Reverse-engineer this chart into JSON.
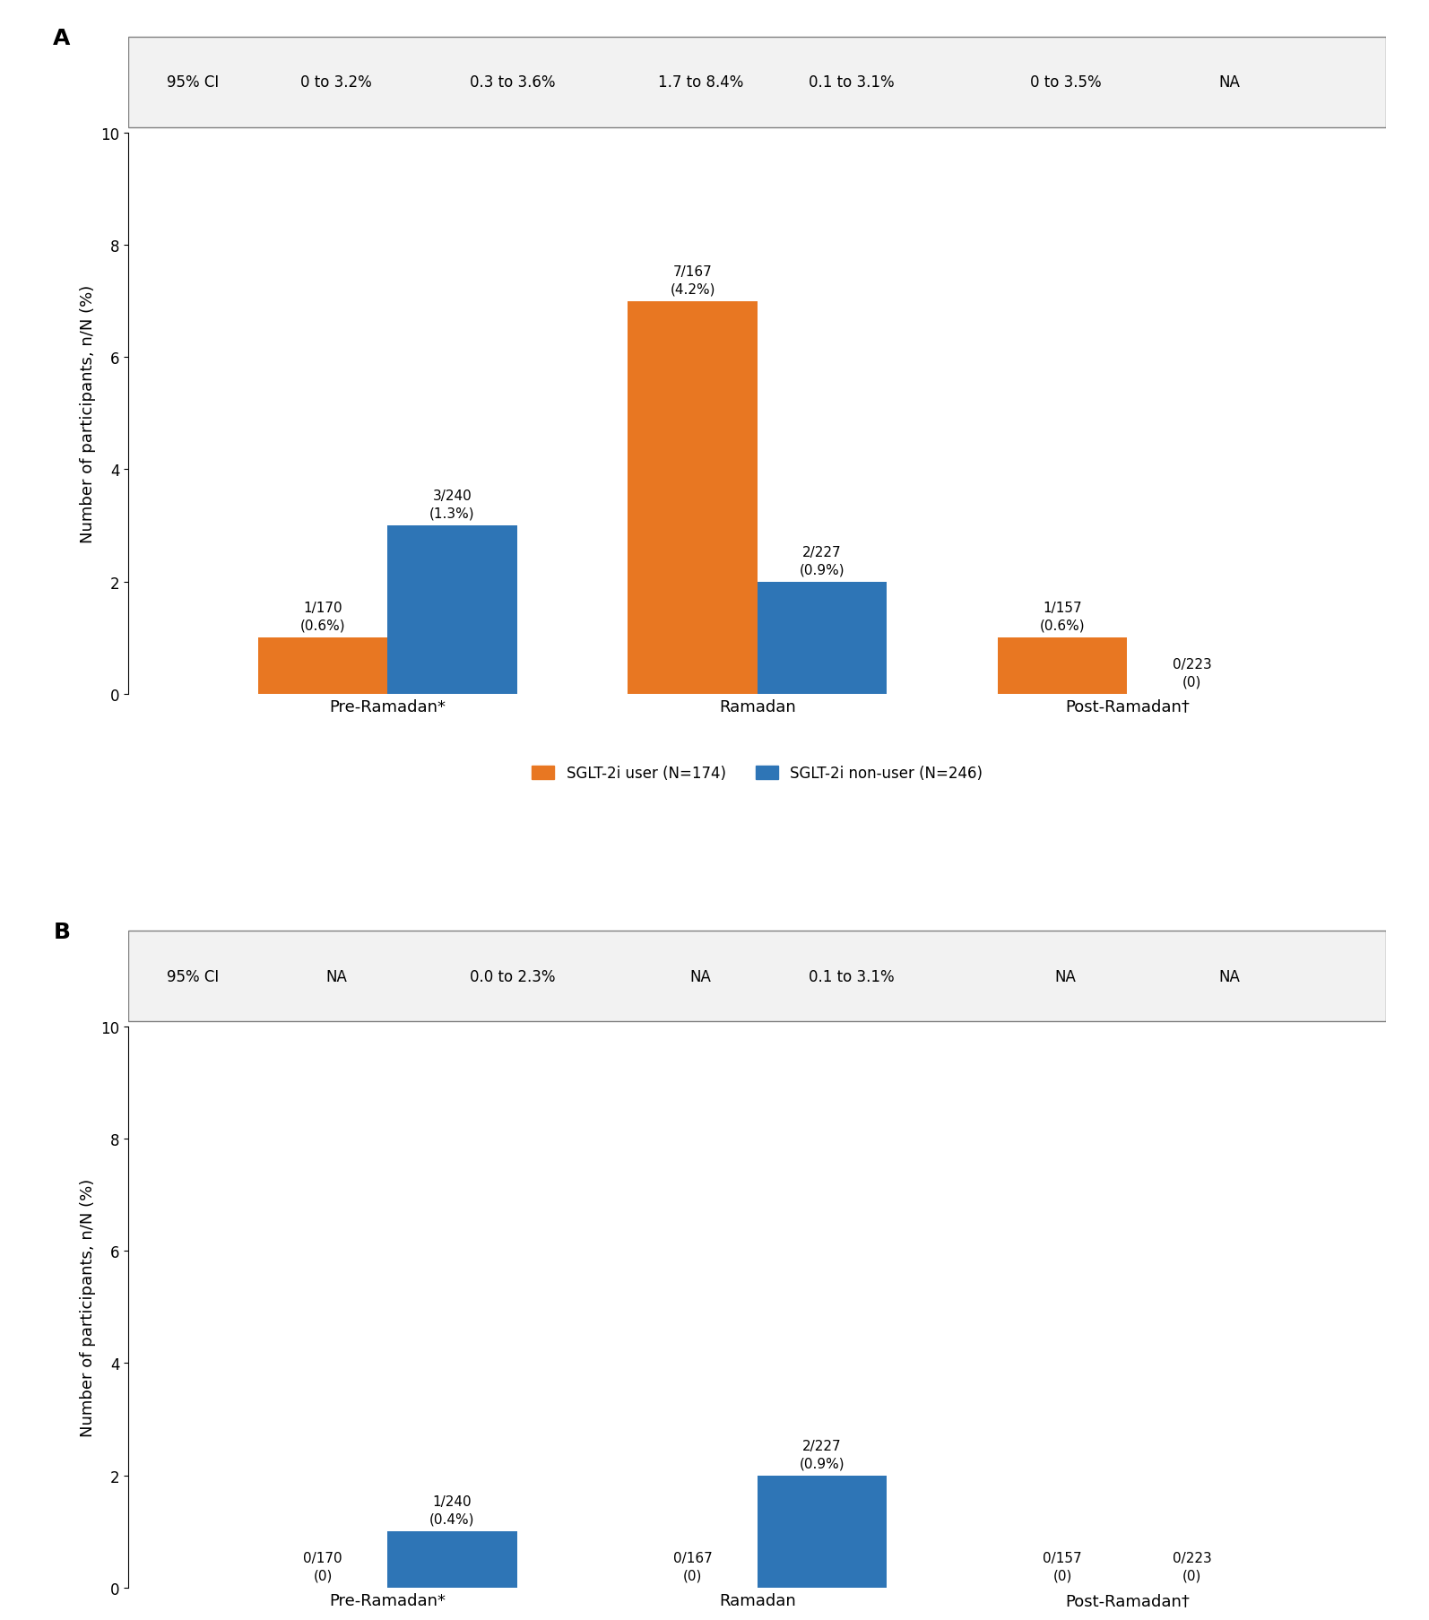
{
  "panel_A": {
    "ci_row": {
      "label": "95% CI",
      "values": [
        "0 to 3.2%",
        "0.3 to 3.6%",
        "1.7 to 8.4%",
        "0.1 to 3.1%",
        "0 to 3.5%",
        "NA"
      ]
    },
    "groups": [
      "Pre-Ramadan*",
      "Ramadan",
      "Post-Ramadan†"
    ],
    "sglt2i_user": {
      "values": [
        1,
        7,
        1
      ],
      "labels": [
        "1/170\n(0.6%)",
        "7/167\n(4.2%)",
        "1/157\n(0.6%)"
      ],
      "color": "#E87722"
    },
    "sglt2i_nonuser": {
      "values": [
        3,
        2,
        0
      ],
      "labels": [
        "3/240\n(1.3%)",
        "2/227\n(0.9%)",
        "0/223\n(0)"
      ],
      "color": "#2E75B6"
    },
    "ylim": [
      0,
      10
    ],
    "yticks": [
      0,
      2,
      4,
      6,
      8,
      10
    ],
    "ylabel": "Number of participants, n/N (%)"
  },
  "panel_B": {
    "ci_row": {
      "label": "95% CI",
      "values": [
        "NA",
        "0.0 to 2.3%",
        "NA",
        "0.1 to 3.1%",
        "NA",
        "NA"
      ]
    },
    "groups": [
      "Pre-Ramadan*",
      "Ramadan",
      "Post-Ramadan†"
    ],
    "sglt2i_user": {
      "values": [
        0,
        0,
        0
      ],
      "labels": [
        "0/170\n(0)",
        "0/167\n(0)",
        "0/157\n(0)"
      ],
      "color": "#E87722"
    },
    "sglt2i_nonuser": {
      "values": [
        1,
        2,
        0
      ],
      "labels": [
        "1/240\n(0.4%)",
        "2/227\n(0.9%)",
        "0/223\n(0)"
      ],
      "color": "#2E75B6"
    },
    "ylim": [
      0,
      10
    ],
    "yticks": [
      0,
      2,
      4,
      6,
      8,
      10
    ],
    "ylabel": "Number of participants, n/N (%)"
  },
  "legend": {
    "sglt2i_user_label": "SGLT-2i user (N=174)",
    "sglt2i_nonuser_label": "SGLT-2i non-user (N=246)",
    "user_color": "#E87722",
    "nonuser_color": "#2E75B6"
  },
  "bar_width": 0.35,
  "figsize": [
    15.94,
    18.08
  ],
  "dpi": 100
}
